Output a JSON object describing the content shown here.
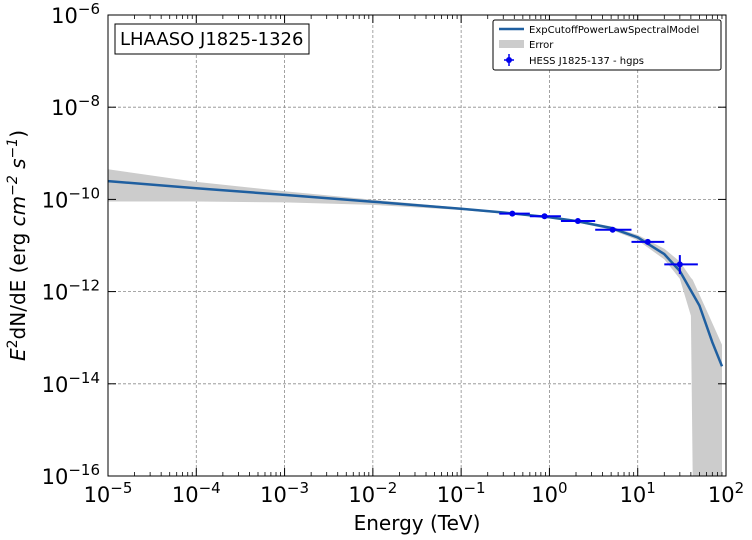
{
  "chart_data": {
    "type": "line",
    "title": "",
    "annotation": "LHAASO J1825-1326",
    "xlabel": "Energy (TeV)",
    "ylabel_parts": {
      "base": "E",
      "sup1": "2",
      "mid": "dN/dE (erg ",
      "unit1": "cm",
      "sup2": "−2",
      "unit2": " s",
      "sup3": "−1",
      "end": ")"
    },
    "x_scale": "log",
    "y_scale": "log",
    "xlim": [
      1e-05,
      100
    ],
    "ylim": [
      1e-16,
      1e-06
    ],
    "x_ticks": [
      {
        "value": 1e-05,
        "base": "10",
        "exp": "−5"
      },
      {
        "value": 0.0001,
        "base": "10",
        "exp": "−4"
      },
      {
        "value": 0.001,
        "base": "10",
        "exp": "−3"
      },
      {
        "value": 0.01,
        "base": "10",
        "exp": "−2"
      },
      {
        "value": 0.1,
        "base": "10",
        "exp": "−1"
      },
      {
        "value": 1,
        "base": "10",
        "exp": "0"
      },
      {
        "value": 10,
        "base": "10",
        "exp": "1"
      },
      {
        "value": 100,
        "base": "10",
        "exp": "2"
      }
    ],
    "y_ticks": [
      {
        "value": 1e-16,
        "base": "10",
        "exp": "−16"
      },
      {
        "value": 1e-14,
        "base": "10",
        "exp": "−14"
      },
      {
        "value": 1e-12,
        "base": "10",
        "exp": "−12"
      },
      {
        "value": 1e-10,
        "base": "10",
        "exp": "−10"
      },
      {
        "value": 1e-08,
        "base": "10",
        "exp": "−8"
      },
      {
        "value": 1e-06,
        "base": "10",
        "exp": "−6"
      }
    ],
    "grid": true,
    "legend_position": "top-right",
    "legend": [
      {
        "label": "ExpCutoffPowerLawSpectralModel",
        "kind": "line"
      },
      {
        "label": "Error",
        "kind": "band"
      },
      {
        "label": "HESS J1825-137 - hgps",
        "kind": "marker"
      }
    ],
    "series": [
      {
        "name": "ExpCutoffPowerLawSpectralModel",
        "kind": "line",
        "color": "#1f5fa0",
        "x": [
          1e-05,
          0.0001,
          0.001,
          0.01,
          0.1,
          0.3,
          1,
          2,
          5,
          10,
          20,
          30,
          50,
          70,
          90
        ],
        "y": [
          2.5e-10,
          1.75e-10,
          1.25e-10,
          8.9e-11,
          6.3e-11,
          5.2e-11,
          4.1e-11,
          3.4e-11,
          2.4e-11,
          1.5e-11,
          6.5e-12,
          2.8e-12,
          5e-13,
          8e-14,
          2.4e-14
        ]
      },
      {
        "name": "Error",
        "kind": "band",
        "color": "#cccccc",
        "x": [
          1e-05,
          0.0001,
          0.001,
          0.01,
          0.1,
          0.3,
          1,
          2,
          5,
          10,
          20,
          30,
          40,
          42,
          60,
          90
        ],
        "y_upper": [
          4.5e-10,
          2.4e-10,
          1.5e-10,
          9.8e-11,
          6.6e-11,
          5.4e-11,
          4.3e-11,
          3.6e-11,
          2.6e-11,
          1.7e-11,
          8.5e-12,
          4.5e-12,
          2e-12,
          1.8e-12,
          4e-13,
          7e-14
        ],
        "y_lower": [
          9e-11,
          9e-11,
          8.6e-11,
          7.6e-11,
          5.9e-11,
          4.9e-11,
          3.9e-11,
          3.2e-11,
          2.2e-11,
          1.3e-11,
          5e-12,
          1.9e-12,
          3e-13,
          1e-16,
          1e-16,
          1e-16
        ]
      },
      {
        "name": "HESS J1825-137 - hgps",
        "kind": "points",
        "color": "#0000ee",
        "points": [
          {
            "x": 0.38,
            "y": 4.9e-11,
            "xerr": [
              0.27,
              0.6
            ],
            "yerr": [
              4.6e-11,
              5.2e-11
            ]
          },
          {
            "x": 0.88,
            "y": 4.3e-11,
            "xerr": [
              0.6,
              1.35
            ],
            "yerr": [
              4e-11,
              4.6e-11
            ]
          },
          {
            "x": 2.1,
            "y": 3.4e-11,
            "xerr": [
              1.35,
              3.3
            ],
            "yerr": [
              3.2e-11,
              3.6e-11
            ]
          },
          {
            "x": 5.2,
            "y": 2.2e-11,
            "xerr": [
              3.3,
              8.5
            ],
            "yerr": [
              2e-11,
              2.4e-11
            ]
          },
          {
            "x": 13,
            "y": 1.2e-11,
            "xerr": [
              8.5,
              20
            ],
            "yerr": [
              1.05e-11,
              1.35e-11
            ]
          },
          {
            "x": 30,
            "y": 3.9e-12,
            "xerr": [
              20,
              48
            ],
            "yerr": [
              2.4e-12,
              6.2e-12
            ]
          }
        ]
      }
    ]
  }
}
